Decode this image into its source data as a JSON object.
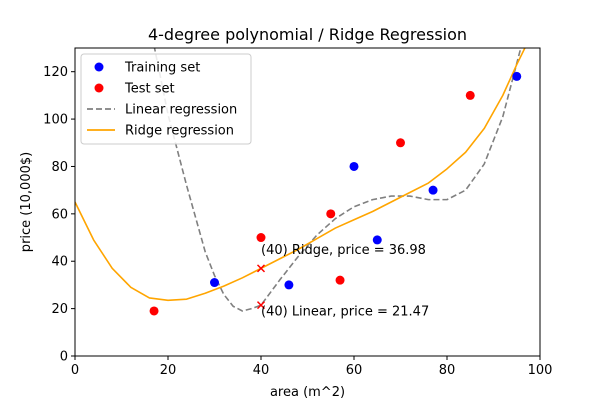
{
  "chart_data": {
    "type": "scatter",
    "title": "4-degree polynomial / Ridge Regression",
    "xlabel": "area (m^2)",
    "ylabel": "price (10,000$)",
    "xlim": [
      0,
      100
    ],
    "ylim": [
      0,
      130
    ],
    "xticks": [
      0,
      20,
      40,
      60,
      80,
      100
    ],
    "yticks": [
      0,
      20,
      40,
      60,
      80,
      100,
      120
    ],
    "grid": false,
    "legend_position": "top-left",
    "series": [
      {
        "name": "Training set",
        "kind": "scatter",
        "color": "#0000ff",
        "points": [
          [
            30,
            31
          ],
          [
            46,
            30
          ],
          [
            60,
            80
          ],
          [
            65,
            49
          ],
          [
            77,
            70
          ],
          [
            95,
            118
          ]
        ]
      },
      {
        "name": "Test set",
        "kind": "scatter",
        "color": "#ff0000",
        "points": [
          [
            17,
            19
          ],
          [
            40,
            50
          ],
          [
            55,
            60
          ],
          [
            57,
            32
          ],
          [
            70,
            90
          ],
          [
            85,
            110
          ]
        ]
      },
      {
        "name": "Linear regression",
        "kind": "line",
        "style": "dashed",
        "color": "#808080",
        "points": [
          [
            17,
            131
          ],
          [
            20,
            102
          ],
          [
            24,
            72
          ],
          [
            28,
            44
          ],
          [
            30,
            34
          ],
          [
            32,
            26
          ],
          [
            34,
            21
          ],
          [
            36,
            19
          ],
          [
            38,
            20
          ],
          [
            40,
            21.47
          ],
          [
            44,
            32
          ],
          [
            48,
            42
          ],
          [
            52,
            51
          ],
          [
            56,
            58
          ],
          [
            60,
            63
          ],
          [
            64,
            66
          ],
          [
            68,
            67.5
          ],
          [
            72,
            67.5
          ],
          [
            76,
            66
          ],
          [
            80,
            66
          ],
          [
            84,
            70
          ],
          [
            88,
            81
          ],
          [
            92,
            101
          ],
          [
            94,
            116
          ],
          [
            96,
            131
          ]
        ]
      },
      {
        "name": "Ridge regression",
        "kind": "line",
        "style": "solid",
        "color": "#ffa500",
        "points": [
          [
            0,
            65
          ],
          [
            4,
            49
          ],
          [
            8,
            37
          ],
          [
            12,
            29
          ],
          [
            16,
            24.5
          ],
          [
            20,
            23.5
          ],
          [
            24,
            24
          ],
          [
            28,
            26.5
          ],
          [
            32,
            29.5
          ],
          [
            36,
            33
          ],
          [
            40,
            36.98
          ],
          [
            44,
            41
          ],
          [
            48,
            45
          ],
          [
            52,
            49.5
          ],
          [
            56,
            54
          ],
          [
            60,
            57.5
          ],
          [
            64,
            61
          ],
          [
            68,
            65
          ],
          [
            72,
            69
          ],
          [
            76,
            73
          ],
          [
            80,
            79
          ],
          [
            84,
            86
          ],
          [
            88,
            96
          ],
          [
            92,
            110
          ],
          [
            95,
            123
          ],
          [
            97,
            131
          ]
        ]
      }
    ],
    "markers": [
      {
        "name": "Ridge prediction",
        "x": 40,
        "y": 36.98,
        "color": "#ff0000",
        "shape": "x"
      },
      {
        "name": "Linear prediction",
        "x": 40,
        "y": 21.47,
        "color": "#ff0000",
        "shape": "x"
      }
    ],
    "annotations": [
      {
        "text": "(40) Ridge, price = 36.98",
        "x": 40,
        "y": 43
      },
      {
        "text": "(40) Linear, price = 21.47",
        "x": 40,
        "y": 17
      }
    ]
  }
}
